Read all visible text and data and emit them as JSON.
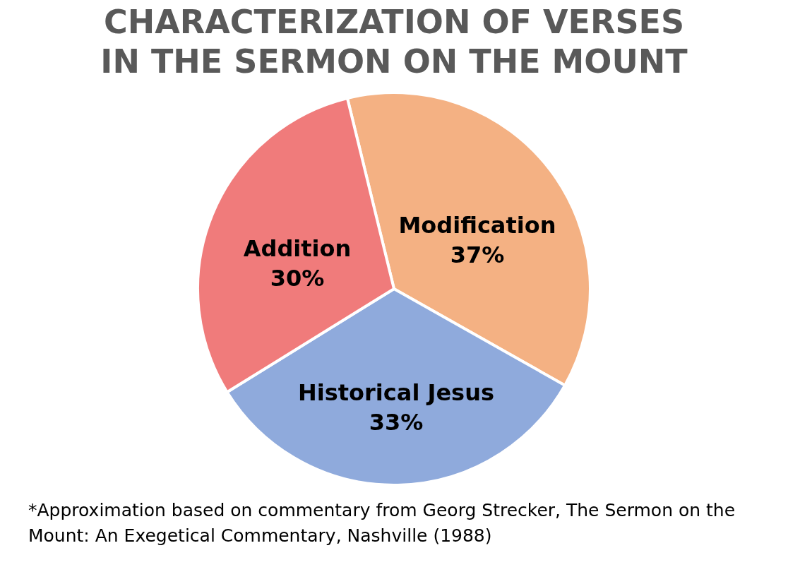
{
  "chart_data": {
    "type": "pie",
    "title": "CHARACTERIZATION OF VERSES IN THE SERMON ON THE MOUNT",
    "categories": [
      "Modification",
      "Historical Jesus",
      "Addition"
    ],
    "values": [
      37,
      33,
      30
    ],
    "value_labels": [
      "37%",
      "33%",
      "30%"
    ],
    "colors": [
      "#f4b183",
      "#8faadc",
      "#f07b7b"
    ],
    "legend": false,
    "annotations": [
      "*Approximation based on commentary from Georg Strecker, The Sermon on the Mount: An Exegetical Commentary, Nashville (1988)"
    ]
  }
}
